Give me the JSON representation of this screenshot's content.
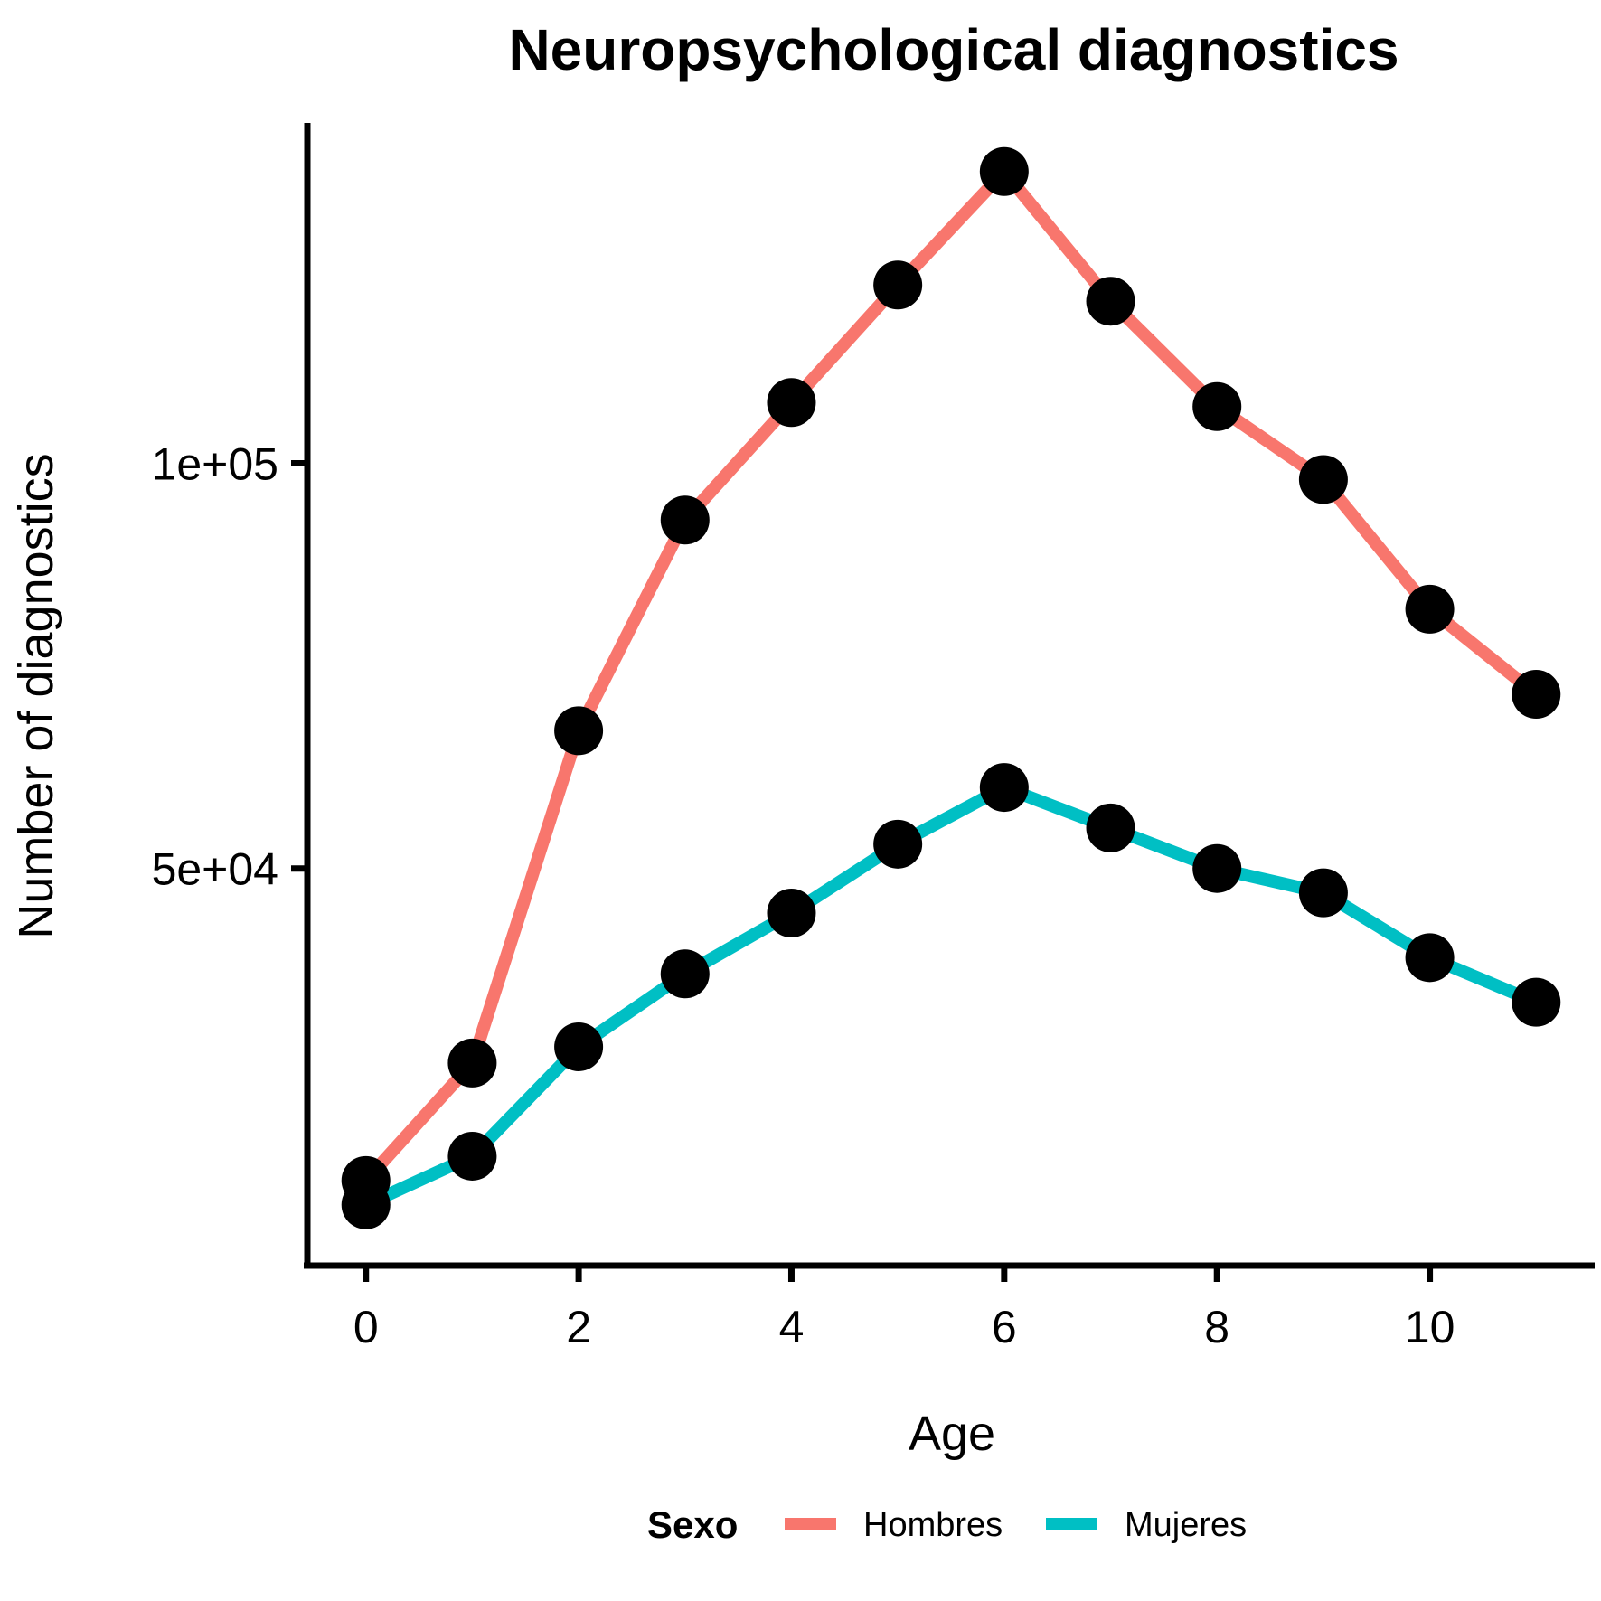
{
  "chart_data": {
    "type": "line",
    "title": "Neuropsychological diagnostics",
    "xlabel": "Age",
    "ylabel": "Number of diagnostics",
    "x": [
      0,
      1,
      2,
      3,
      4,
      5,
      6,
      7,
      8,
      9,
      10,
      11
    ],
    "x_ticks": [
      0,
      2,
      4,
      6,
      8,
      10
    ],
    "x_tick_labels": [
      "0",
      "2",
      "4",
      "6",
      "8",
      "10"
    ],
    "y_ticks": [
      50000,
      100000
    ],
    "y_tick_labels": [
      "5e+04",
      "1e+05"
    ],
    "xlim": [
      -0.55,
      11.55
    ],
    "ylim": [
      1000,
      142000
    ],
    "grid": false,
    "legend": {
      "title": "Sexo",
      "position": "bottom"
    },
    "series": [
      {
        "name": "Hombres",
        "color": "#F8766D",
        "values": [
          11500,
          26000,
          67000,
          93000,
          107500,
          122000,
          136000,
          120000,
          107000,
          98000,
          82000,
          71500
        ]
      },
      {
        "name": "Mujeres",
        "color": "#00BFC4",
        "values": [
          8500,
          14500,
          28000,
          37000,
          44500,
          53000,
          60000,
          55000,
          50000,
          47000,
          39000,
          33500
        ]
      }
    ],
    "point_color": "#000000"
  }
}
